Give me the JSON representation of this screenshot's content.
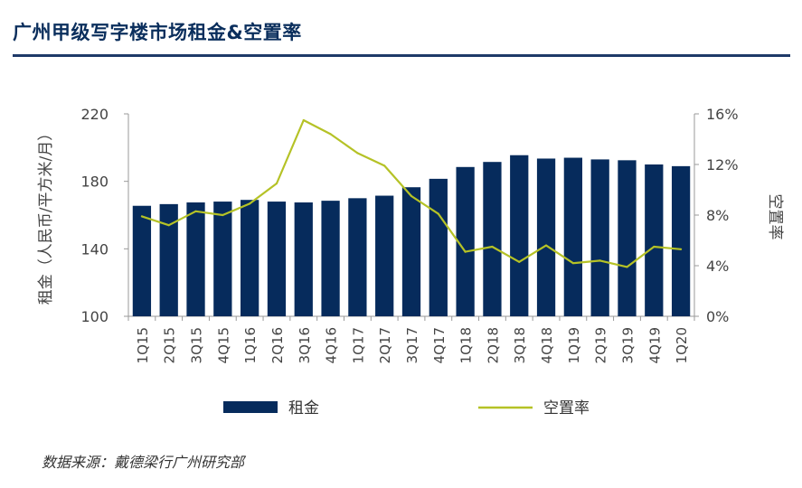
{
  "title": "广州甲级写字楼市场租金&空置率",
  "source": "数据来源：戴德梁行广州研究部",
  "chart_data": {
    "type": "bar+line",
    "categories": [
      "1Q15",
      "2Q15",
      "3Q15",
      "4Q15",
      "1Q16",
      "2Q16",
      "3Q16",
      "4Q16",
      "1Q17",
      "2Q17",
      "3Q17",
      "4Q17",
      "1Q18",
      "2Q18",
      "3Q18",
      "4Q18",
      "1Q19",
      "2Q19",
      "3Q19",
      "4Q19",
      "1Q20"
    ],
    "series": [
      {
        "name": "租金",
        "type": "bar",
        "axis": "left",
        "values": [
          165.5,
          166.5,
          167.5,
          168,
          169,
          168,
          167.5,
          168.5,
          170,
          171.5,
          176.5,
          181.5,
          188.5,
          191.5,
          195.5,
          193.5,
          194,
          193,
          192.5,
          190,
          189
        ],
        "color": "#062b5c"
      },
      {
        "name": "空置率",
        "type": "line",
        "axis": "right",
        "values": [
          7.9,
          7.2,
          8.3,
          8.0,
          8.9,
          10.5,
          15.5,
          14.4,
          12.9,
          11.9,
          9.5,
          8.1,
          5.1,
          5.5,
          4.3,
          5.6,
          4.2,
          4.4,
          3.9,
          5.5,
          5.3
        ],
        "color": "#b5c226"
      }
    ],
    "y_left": {
      "label": "租金（人民币/平方米/月）",
      "min": 100,
      "max": 220,
      "ticks": [
        "100",
        "140",
        "180",
        "220"
      ]
    },
    "y_right": {
      "label": "空置率",
      "min": 0,
      "max": 16,
      "ticks": [
        "0%",
        "4%",
        "8%",
        "12%",
        "16%"
      ]
    },
    "legend": {
      "position": "bottom",
      "items": [
        "租金",
        "空置率"
      ]
    },
    "grid": false
  }
}
